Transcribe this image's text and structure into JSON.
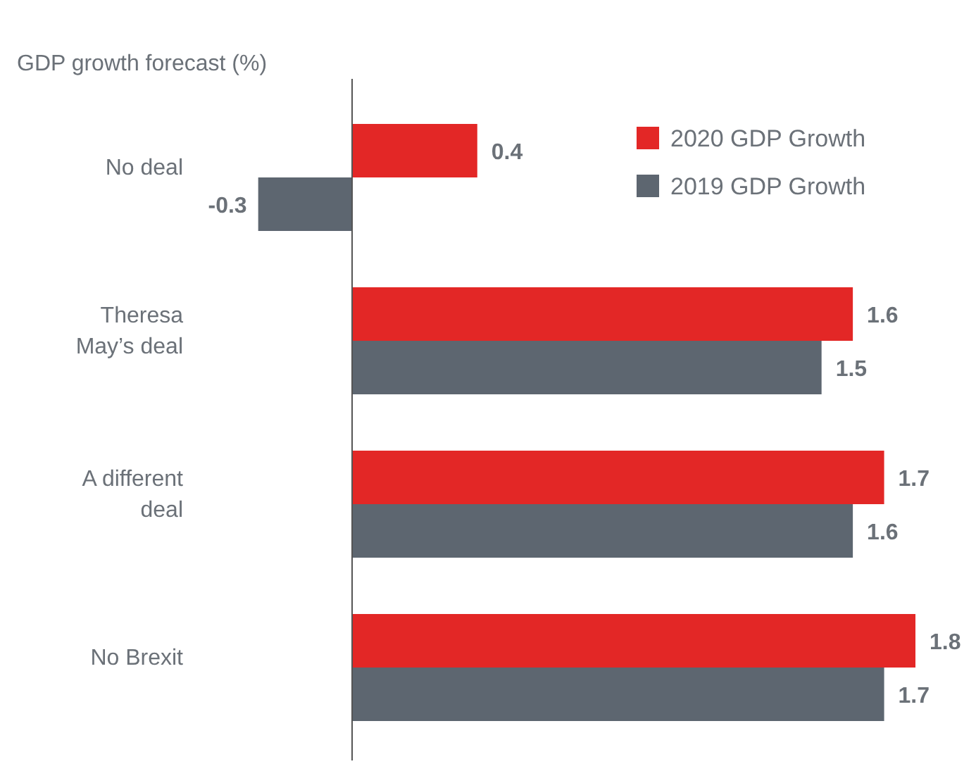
{
  "chart_data": {
    "type": "bar",
    "orientation": "horizontal",
    "ylabel": "GDP growth forecast (%)",
    "categories": [
      "No deal",
      "Theresa May’s deal",
      "A different deal",
      "No Brexit"
    ],
    "series": [
      {
        "name": "2020 GDP Growth",
        "color": "#e32726",
        "values": [
          0.4,
          1.6,
          1.7,
          1.8
        ]
      },
      {
        "name": "2019 GDP Growth",
        "color": "#5d6670",
        "values": [
          -0.3,
          1.5,
          1.6,
          1.7
        ]
      }
    ],
    "data_labels": true,
    "legend": "top right"
  }
}
